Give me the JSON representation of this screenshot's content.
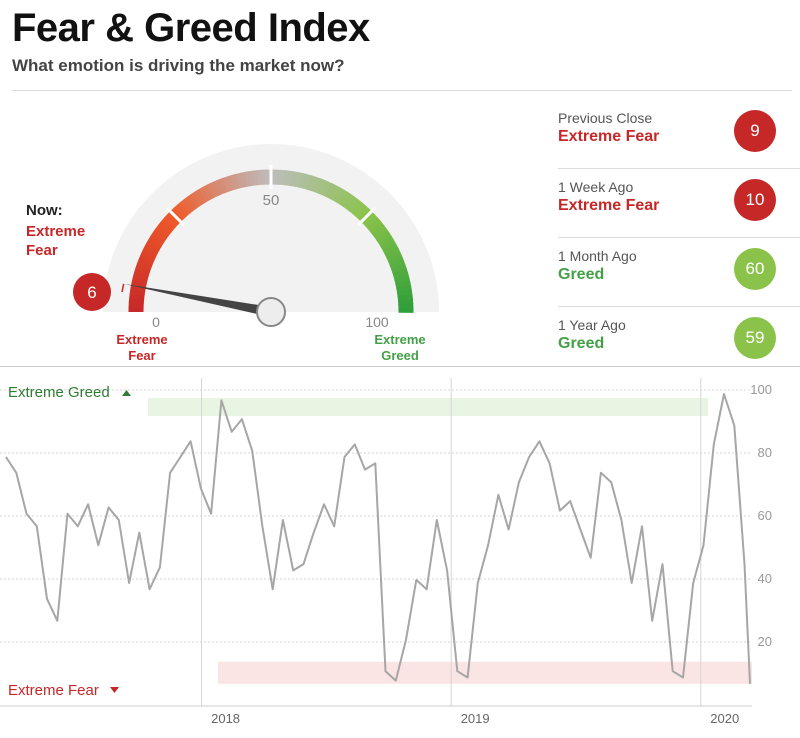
{
  "header": {
    "title": "Fear & Greed Index",
    "subtitle": "What emotion is driving the market now?"
  },
  "gauge": {
    "now_label": "Now:",
    "now_rating": "Extreme Fear",
    "value": 6,
    "scale_labels": {
      "min": "0",
      "mid": "50",
      "max": "100"
    },
    "end_labels": {
      "left": "Extreme Fear",
      "right": "Extreme Greed"
    }
  },
  "history": [
    {
      "period": "Previous Close",
      "rating": "Extreme Fear",
      "value": "9",
      "color": "#c62828"
    },
    {
      "period": "1 Week Ago",
      "rating": "Extreme Fear",
      "value": "10",
      "color": "#c62828"
    },
    {
      "period": "1 Month Ago",
      "rating": "Greed",
      "value": "60",
      "color": "#8bc34a"
    },
    {
      "period": "1 Year Ago",
      "rating": "Greed",
      "value": "59",
      "color": "#8bc34a"
    }
  ],
  "colors": {
    "fear": "#c62828",
    "greed_text": "#43a047",
    "greed_circle": "#8bc34a",
    "line": "#a6a6a6"
  },
  "chart_data": {
    "type": "line",
    "ylim": [
      0,
      100
    ],
    "yticks": [
      20,
      40,
      60,
      80,
      100
    ],
    "xticks": [
      "2018",
      "2019",
      "2020"
    ],
    "bands": {
      "greed_label": "Extreme Greed",
      "fear_label": "Extreme Fear"
    },
    "x_range": [
      "2017-03-21",
      "2020-03-13"
    ],
    "grid": true,
    "series": [
      {
        "x": [
          "2017-03-21",
          "2017-04-05",
          "2017-04-20",
          "2017-05-05",
          "2017-05-20",
          "2017-06-04",
          "2017-06-19",
          "2017-07-04",
          "2017-07-19",
          "2017-08-03",
          "2017-08-18",
          "2017-09-02",
          "2017-09-17",
          "2017-10-02",
          "2017-10-17",
          "2017-11-01",
          "2017-11-16",
          "2017-12-01",
          "2017-12-16",
          "2017-12-31",
          "2018-01-15",
          "2018-01-30",
          "2018-02-14",
          "2018-03-01",
          "2018-03-16",
          "2018-03-31",
          "2018-04-15",
          "2018-04-30",
          "2018-05-15",
          "2018-05-30",
          "2018-06-14",
          "2018-06-29",
          "2018-07-14",
          "2018-07-29",
          "2018-08-13",
          "2018-08-28",
          "2018-09-12",
          "2018-09-27",
          "2018-10-12",
          "2018-10-27",
          "2018-11-11",
          "2018-11-26",
          "2018-12-11",
          "2018-12-26",
          "2019-01-10",
          "2019-01-25",
          "2019-02-09",
          "2019-02-24",
          "2019-03-11",
          "2019-03-26",
          "2019-04-10",
          "2019-04-25",
          "2019-05-10",
          "2019-05-25",
          "2019-06-09",
          "2019-06-24",
          "2019-07-09",
          "2019-07-24",
          "2019-08-08",
          "2019-08-23",
          "2019-09-07",
          "2019-09-22",
          "2019-10-07",
          "2019-10-22",
          "2019-11-06",
          "2019-11-21",
          "2019-12-06",
          "2019-12-21",
          "2020-01-05",
          "2020-01-20",
          "2020-02-04",
          "2020-02-19",
          "2020-03-05",
          "2020-03-13"
        ],
        "values": [
          80,
          75,
          62,
          58,
          35,
          28,
          62,
          58,
          65,
          52,
          64,
          60,
          40,
          56,
          38,
          45,
          75,
          80,
          85,
          70,
          62,
          98,
          88,
          92,
          82,
          58,
          38,
          60,
          44,
          46,
          56,
          65,
          58,
          80,
          84,
          76,
          78,
          12,
          9,
          22,
          41,
          38,
          60,
          44,
          12,
          10,
          40,
          52,
          68,
          57,
          72,
          80,
          85,
          78,
          63,
          66,
          57,
          48,
          75,
          72,
          60,
          40,
          58,
          28,
          46,
          12,
          10,
          40,
          52,
          84,
          100,
          90,
          46,
          8
        ]
      }
    ]
  }
}
